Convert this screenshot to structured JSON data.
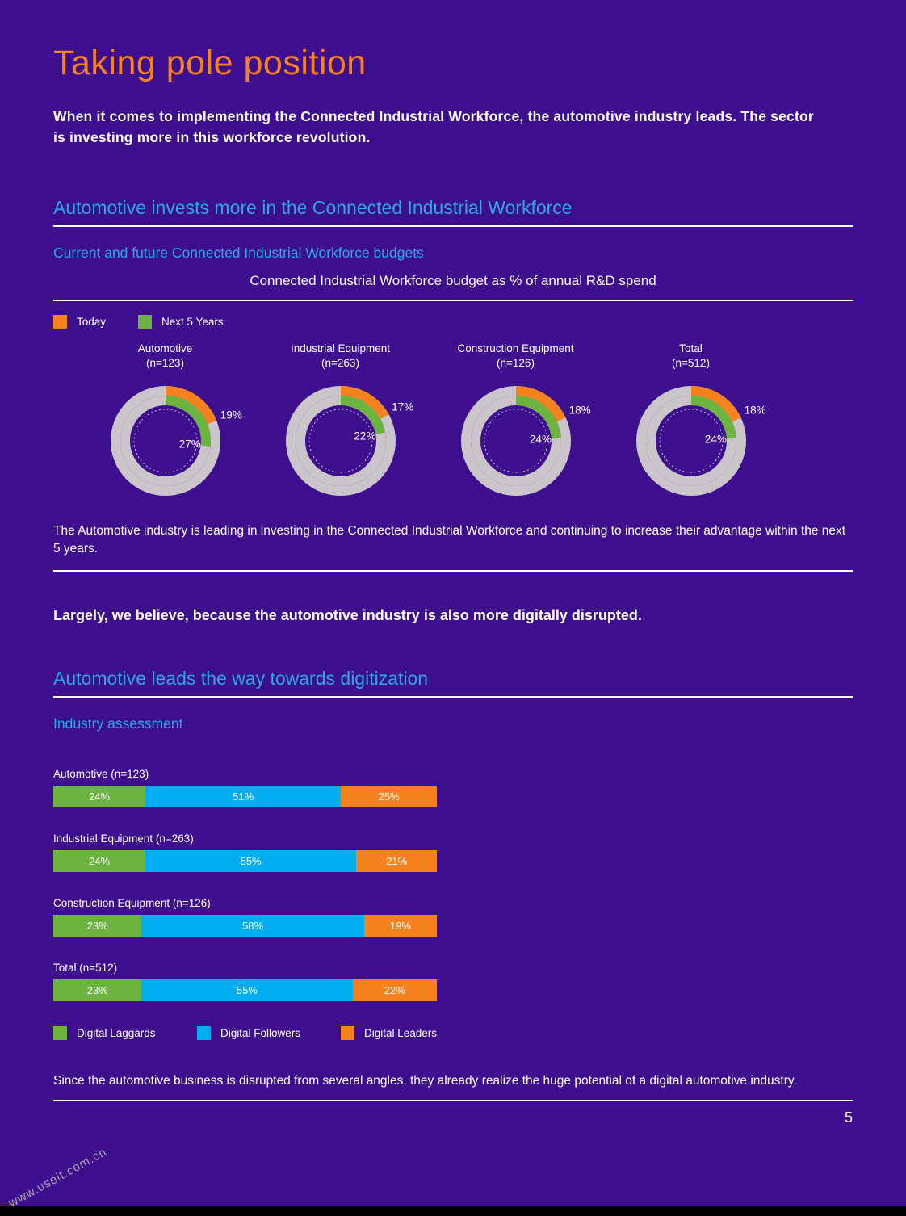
{
  "page": {
    "title": "Taking pole position",
    "intro": "When it comes to implementing the Connected Industrial Workforce, the automotive industry leads. The sector is investing more in this workforce revolution.",
    "page_number": "5",
    "watermark": "www.useit.com.cn"
  },
  "colors": {
    "background": "#3D0E8E",
    "orange": "#F5821F",
    "green": "#6CB33F",
    "blue": "#00AEEF",
    "heading_blue": "#2AA9E0",
    "donut_gray": "#C9C5C9",
    "text": "#FFFFFF"
  },
  "section1": {
    "heading": "Automotive invests more in the Connected Industrial Workforce",
    "subheading": "Current and future Connected Industrial Workforce budgets",
    "chart_title": "Connected Industrial Workforce budget as % of annual R&D spend",
    "note": "The Automotive industry is leading in investing in the Connected Industrial Workforce and continuing to increase their advantage within the next 5 years."
  },
  "statement": "Largely, we believe, because the automotive industry is also more digitally disrupted.",
  "section2": {
    "heading": "Automotive leads the way towards digitization",
    "subheading": "Industry assessment",
    "note": "Since the automotive business is disrupted from several angles, they already realize the huge potential of a digital automotive industry."
  },
  "chart_data": [
    {
      "type": "donut",
      "title": "Connected Industrial Workforce budget as % of annual R&D spend",
      "legend": [
        {
          "label": "Today",
          "color": "#F5821F"
        },
        {
          "label": "Next 5 Years",
          "color": "#6CB33F"
        }
      ],
      "groups": [
        {
          "name": "Automotive",
          "n": "(n=123)",
          "today_pct": 19,
          "next_5_years_pct": 27
        },
        {
          "name": "Industrial Equipment",
          "n": "(n=263)",
          "today_pct": 17,
          "next_5_years_pct": 22
        },
        {
          "name": "Construction Equipment",
          "n": "(n=126)",
          "today_pct": 18,
          "next_5_years_pct": 24
        },
        {
          "name": "Total",
          "n": "(n=512)",
          "today_pct": 18,
          "next_5_years_pct": 24
        }
      ]
    },
    {
      "type": "stacked-bar",
      "title": "Industry assessment",
      "categories": [
        "Automotive (n=123)",
        "Industrial Equipment (n=263)",
        "Construction Equipment (n=126)",
        "Total (n=512)"
      ],
      "series": [
        {
          "name": "Digital Laggards",
          "color": "#6CB33F",
          "values": [
            24,
            24,
            23,
            23
          ]
        },
        {
          "name": "Digital Followers",
          "color": "#00AEEF",
          "values": [
            51,
            55,
            58,
            55
          ]
        },
        {
          "name": "Digital Leaders",
          "color": "#F5821F",
          "values": [
            25,
            21,
            19,
            22
          ]
        }
      ],
      "value_unit": "%"
    }
  ]
}
